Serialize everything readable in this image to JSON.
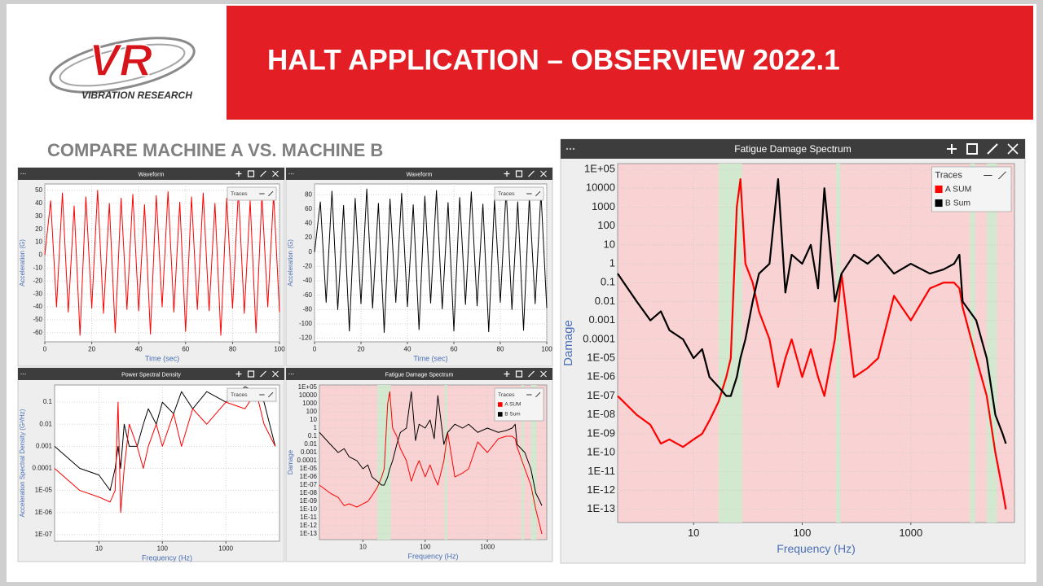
{
  "header": {
    "logo_mark": "VR",
    "logo_text": "VIBRATION RESEARCH",
    "title": "HALT APPLICATION – OBSERVIEW 2022.1",
    "subtitle": "COMPARE MACHINE A VS. MACHINE B"
  },
  "chart_data": [
    {
      "type": "line",
      "title": "Waveform",
      "xlabel": "Time (sec)",
      "ylabel": "Acceleration (G)",
      "legend_title": "Traces",
      "legend": "upper right",
      "grid": true,
      "x": [
        0,
        2.5,
        5,
        7.5,
        10,
        12.5,
        15,
        17.5,
        20,
        22.5,
        25,
        27.5,
        30,
        32.5,
        35,
        37.5,
        40,
        42.5,
        45,
        47.5,
        50,
        52.5,
        55,
        57.5,
        60,
        62.5,
        65,
        67.5,
        70,
        72.5,
        75,
        77.5,
        80,
        82.5,
        85,
        87.5,
        90,
        92.5,
        95,
        97.5,
        100
      ],
      "series": [
        {
          "color": "#ff0000",
          "values": [
            0,
            42,
            -40,
            48,
            -44,
            38,
            -62,
            45,
            -41,
            50,
            -45,
            40,
            -60,
            44,
            -42,
            47,
            -43,
            39,
            -61,
            46,
            -40,
            49,
            -44,
            41,
            -59,
            45,
            -42,
            48,
            -43,
            40,
            -62,
            44,
            -41,
            50,
            -45,
            42,
            -60,
            46,
            -40,
            47,
            -44
          ]
        }
      ],
      "xlim": [
        0,
        100
      ],
      "xticks": [
        0,
        20,
        40,
        60,
        80,
        100
      ],
      "ylim": [
        -67,
        55
      ],
      "yticks": [
        50,
        40,
        30,
        20,
        10,
        0,
        -10,
        -20,
        -30,
        -40,
        -50,
        -60
      ]
    },
    {
      "type": "line",
      "title": "Waveform",
      "xlabel": "Time (sec)",
      "ylabel": "Acceleration (G)",
      "legend_title": "Traces",
      "legend": "upper right",
      "grid": true,
      "x": [
        0,
        2.5,
        5,
        7.5,
        10,
        12.5,
        15,
        17.5,
        20,
        22.5,
        25,
        27.5,
        30,
        32.5,
        35,
        37.5,
        40,
        42.5,
        45,
        47.5,
        50,
        52.5,
        55,
        57.5,
        60,
        62.5,
        65,
        67.5,
        70,
        72.5,
        75,
        77.5,
        80,
        82.5,
        85,
        87.5,
        90,
        92.5,
        95,
        97.5,
        100
      ],
      "series": [
        {
          "color": "#000000",
          "values": [
            0,
            70,
            -70,
            85,
            -80,
            65,
            -110,
            75,
            -72,
            88,
            -78,
            68,
            -112,
            74,
            -70,
            82,
            -76,
            66,
            -108,
            78,
            -71,
            86,
            -79,
            69,
            -110,
            76,
            -73,
            84,
            -75,
            67,
            -111,
            73,
            -70,
            87,
            -80,
            70,
            -109,
            77,
            -72,
            83,
            -78
          ]
        }
      ],
      "xlim": [
        0,
        100
      ],
      "xticks": [
        0,
        20,
        40,
        60,
        80,
        100
      ],
      "ylim": [
        -125,
        95
      ],
      "yticks": [
        80,
        60,
        40,
        20,
        0,
        -20,
        -40,
        -60,
        -80,
        -100,
        -120
      ]
    },
    {
      "type": "line",
      "title": "Power Spectral Density",
      "xlabel": "Frequency (Hz)",
      "ylabel": "Acceleration Spectral Density (G²/Hz)",
      "legend_title": "Traces",
      "legend": "upper right",
      "grid": true,
      "xscale": "log",
      "yscale": "log",
      "x": [
        2,
        5,
        10,
        15,
        18,
        20,
        22,
        25,
        30,
        40,
        50,
        60,
        80,
        100,
        150,
        200,
        300,
        500,
        1000,
        2000,
        3000,
        4000,
        6000
      ],
      "series": [
        {
          "color": "#000000",
          "values": [
            0.001,
            0.0001,
            5e-05,
            1e-05,
            0.0001,
            0.001,
            0.0001,
            0.01,
            0.001,
            0.001,
            0.01,
            0.05,
            0.01,
            0.1,
            0.03,
            0.3,
            0.05,
            0.3,
            0.1,
            0.5,
            0.3,
            0.1,
            0.001
          ]
        },
        {
          "color": "#ff0000",
          "values": [
            0.0001,
            1e-05,
            5e-06,
            3e-06,
            1e-05,
            0.1,
            1e-06,
            0.0001,
            0.01,
            0.001,
            0.0001,
            0.001,
            0.01,
            0.001,
            0.03,
            0.001,
            0.05,
            0.01,
            0.1,
            0.05,
            0.3,
            0.01,
            0.001
          ]
        }
      ],
      "xlim": [
        2,
        7000
      ],
      "xticks": [
        10,
        100,
        1000
      ],
      "ylim": [
        5e-08,
        0.6
      ],
      "yticks": [
        0.1,
        0.01,
        0.001,
        0.0001,
        {
          "value": 1e-05,
          "label": "1E-05"
        },
        {
          "value": 1e-06,
          "label": "1E-06"
        },
        {
          "value": 1e-07,
          "label": "1E-07"
        }
      ]
    },
    {
      "type": "line",
      "title": "Fatigue Damage Spectrum",
      "xlabel": "Frequency (Hz)",
      "ylabel": "Damage",
      "legend_title": "Traces",
      "legend": "upper right",
      "grid": true,
      "xscale": "log",
      "yscale": "log",
      "plot_background": "#f9d3d3",
      "band_color": "#d2e8cf",
      "bands": [
        [
          17,
          28
        ],
        [
          205,
          225
        ],
        [
          3500,
          3900
        ],
        [
          5000,
          6200
        ]
      ],
      "x": [
        2,
        3,
        4,
        5,
        6,
        8,
        10,
        12,
        14,
        17,
        20,
        22,
        25,
        27,
        30,
        35,
        40,
        50,
        60,
        70,
        80,
        100,
        120,
        140,
        160,
        200,
        230,
        300,
        400,
        500,
        700,
        1000,
        1500,
        2000,
        2500,
        2800,
        3000,
        4000,
        5000,
        6000,
        7000,
        7500
      ],
      "series": [
        {
          "name": "A SUM",
          "color": "#ff0000",
          "values": [
            1e-07,
            1e-08,
            3e-09,
            3e-10,
            5e-10,
            2e-10,
            5e-10,
            1e-09,
            5e-09,
            5e-08,
            1e-06,
            1e-05,
            1000,
            30000,
            1,
            0.1,
            0.003,
            0.0001,
            3e-07,
            1e-05,
            0.0001,
            1e-06,
            3e-05,
            1e-06,
            1e-07,
            0.0001,
            0.3,
            1e-06,
            3e-06,
            1e-05,
            0.02,
            0.001,
            0.05,
            0.1,
            0.1,
            0.05,
            0.005,
            1e-05,
            1e-07,
            1e-10,
            1e-12,
            1e-13
          ]
        },
        {
          "name": "B Sum",
          "color": "#000000",
          "values": [
            0.3,
            0.01,
            0.001,
            0.003,
            0.0003,
            0.0001,
            1e-05,
            3e-05,
            1e-06,
            3e-07,
            1e-07,
            1e-07,
            1e-06,
            1e-05,
            0.0001,
            0.01,
            0.3,
            1,
            30000,
            0.03,
            3,
            1,
            10,
            0.05,
            10000,
            0.01,
            0.3,
            3,
            1,
            3,
            0.3,
            1,
            0.3,
            0.5,
            1,
            3,
            0.01,
            0.001,
            1e-05,
            1e-08,
            1e-09,
            3e-10
          ]
        }
      ],
      "xlim": [
        2,
        9000
      ],
      "xticks": [
        10,
        100,
        1000
      ],
      "ylim": [
        2e-14,
        200000
      ],
      "yticks": [
        {
          "value": 100000,
          "label": "1E+05"
        },
        10000,
        1000,
        100,
        10,
        1,
        0.1,
        0.01,
        0.001,
        0.0001,
        {
          "value": 1e-05,
          "label": "1E-05"
        },
        {
          "value": 1e-06,
          "label": "1E-06"
        },
        {
          "value": 1e-07,
          "label": "1E-07"
        },
        {
          "value": 1e-08,
          "label": "1E-08"
        },
        {
          "value": 1e-09,
          "label": "1E-09"
        },
        {
          "value": 1e-10,
          "label": "1E-10"
        },
        {
          "value": 1e-11,
          "label": "1E-11"
        },
        {
          "value": 1e-12,
          "label": "1E-12"
        },
        {
          "value": 1e-13,
          "label": "1E-13"
        }
      ]
    },
    {
      "type": "line",
      "title": "Fatigue Damage Spectrum",
      "xlabel": "Frequency (Hz)",
      "ylabel": "Damage",
      "legend_title": "Traces",
      "legend": "upper right",
      "grid": true,
      "xscale": "log",
      "yscale": "log",
      "plot_background": "#f9d3d3",
      "band_color": "#d2e8cf",
      "bands": [
        [
          17,
          28
        ],
        [
          205,
          225
        ],
        [
          3500,
          3900
        ],
        [
          5000,
          6200
        ]
      ],
      "x": [
        2,
        3,
        4,
        5,
        6,
        8,
        10,
        12,
        14,
        17,
        20,
        22,
        25,
        27,
        30,
        35,
        40,
        50,
        60,
        70,
        80,
        100,
        120,
        140,
        160,
        200,
        230,
        300,
        400,
        500,
        700,
        1000,
        1500,
        2000,
        2500,
        2800,
        3000,
        4000,
        5000,
        6000,
        7000,
        7500
      ],
      "series": [
        {
          "name": "A SUM",
          "color": "#ff0000",
          "values": [
            1e-07,
            1e-08,
            3e-09,
            3e-10,
            5e-10,
            2e-10,
            5e-10,
            1e-09,
            5e-09,
            5e-08,
            1e-06,
            1e-05,
            1000,
            30000,
            1,
            0.1,
            0.003,
            0.0001,
            3e-07,
            1e-05,
            0.0001,
            1e-06,
            3e-05,
            1e-06,
            1e-07,
            0.0001,
            0.3,
            1e-06,
            3e-06,
            1e-05,
            0.02,
            0.001,
            0.05,
            0.1,
            0.1,
            0.05,
            0.005,
            1e-05,
            1e-07,
            1e-10,
            1e-12,
            1e-13
          ]
        },
        {
          "name": "B Sum",
          "color": "#000000",
          "values": [
            0.3,
            0.01,
            0.001,
            0.003,
            0.0003,
            0.0001,
            1e-05,
            3e-05,
            1e-06,
            3e-07,
            1e-07,
            1e-07,
            1e-06,
            1e-05,
            0.0001,
            0.01,
            0.3,
            1,
            30000,
            0.03,
            3,
            1,
            10,
            0.05,
            10000,
            0.01,
            0.3,
            3,
            1,
            3,
            0.3,
            1,
            0.3,
            0.5,
            1,
            3,
            0.01,
            0.001,
            1e-05,
            1e-08,
            1e-09,
            3e-10
          ]
        }
      ],
      "xlim": [
        2,
        9000
      ],
      "xticks": [
        10,
        100,
        1000
      ],
      "ylim": [
        2e-14,
        200000
      ],
      "yticks": [
        {
          "value": 100000,
          "label": "1E+05"
        },
        10000,
        1000,
        100,
        10,
        1,
        0.1,
        0.01,
        0.001,
        0.0001,
        {
          "value": 1e-05,
          "label": "1E-05"
        },
        {
          "value": 1e-06,
          "label": "1E-06"
        },
        {
          "value": 1e-07,
          "label": "1E-07"
        },
        {
          "value": 1e-08,
          "label": "1E-08"
        },
        {
          "value": 1e-09,
          "label": "1E-09"
        },
        {
          "value": 1e-10,
          "label": "1E-10"
        },
        {
          "value": 1e-11,
          "label": "1E-11"
        },
        {
          "value": 1e-12,
          "label": "1E-12"
        },
        {
          "value": 1e-13,
          "label": "1E-13"
        }
      ]
    }
  ]
}
